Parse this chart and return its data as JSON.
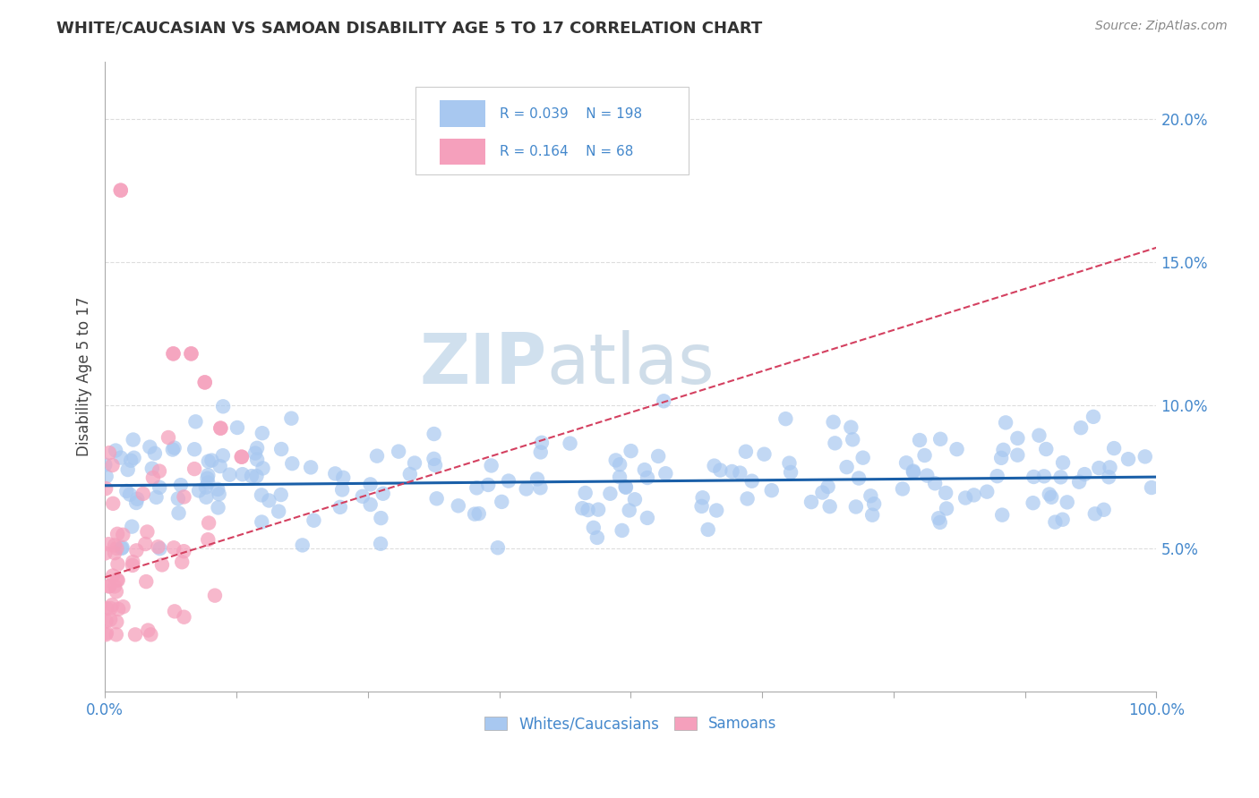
{
  "title": "WHITE/CAUCASIAN VS SAMOAN DISABILITY AGE 5 TO 17 CORRELATION CHART",
  "source_text": "Source: ZipAtlas.com",
  "ylabel": "Disability Age 5 to 17",
  "xlim": [
    0,
    1.0
  ],
  "ylim": [
    0.0,
    0.22
  ],
  "yticks": [
    0.05,
    0.1,
    0.15,
    0.2
  ],
  "ytick_labels": [
    "5.0%",
    "10.0%",
    "15.0%",
    "20.0%"
  ],
  "xtick_positions": [
    0.0,
    0.125,
    0.25,
    0.375,
    0.5,
    0.625,
    0.75,
    0.875,
    1.0
  ],
  "blue_R": 0.039,
  "blue_N": 198,
  "pink_R": 0.164,
  "pink_N": 68,
  "blue_color": "#a8c8f0",
  "pink_color": "#f5a0bc",
  "blue_line_color": "#1a5fa8",
  "pink_line_color": "#d44060",
  "watermark_zip": "ZIP",
  "watermark_atlas": "atlas",
  "title_color": "#333333",
  "axis_color": "#4488cc",
  "legend_label_blue": "Whites/Caucasians",
  "legend_label_pink": "Samoans",
  "blue_trend_intercept": 0.072,
  "blue_trend_slope": 0.003,
  "pink_trend_intercept": 0.04,
  "pink_trend_slope": 0.115,
  "grid_color": "#dddddd",
  "background_color": "#ffffff"
}
